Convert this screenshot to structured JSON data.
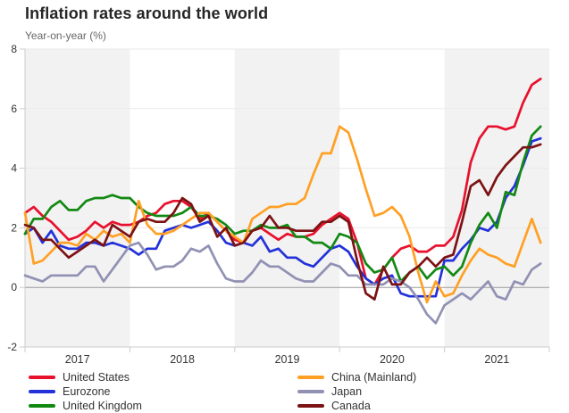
{
  "header": {
    "title": "Inflation rates around the world",
    "subtitle": "Year-on-year (%)"
  },
  "chart_data": {
    "type": "line",
    "title": "Inflation rates around the world",
    "ylabel": "Year-on-year (%)",
    "x_start": "2017-01",
    "x_end": "2021-12",
    "frequency": "monthly",
    "points_per_series": 60,
    "ylim": [
      -2,
      8
    ],
    "y_tick_labels": [
      "-2",
      "0",
      "2",
      "4",
      "6",
      "8"
    ],
    "y_ticks": [
      -2,
      0,
      2,
      4,
      6,
      8
    ],
    "x_tick_labels": [
      "2017",
      "2018",
      "2019",
      "2020",
      "2021"
    ],
    "grid": "horizontal",
    "legend_position": "bottom-left",
    "plot_band_color": "#f2f2f2",
    "shaded_years": [
      "2017",
      "2019",
      "2021"
    ],
    "zero_line_color": "#9a9a9a",
    "grid_color": "#e9e9e9",
    "axis_color": "#cccccc",
    "tick_label_color": "#333333",
    "series": [
      {
        "name": "United States",
        "color": "#e8112d",
        "values": [
          2.5,
          2.7,
          2.4,
          2.2,
          1.9,
          1.6,
          1.7,
          1.9,
          2.2,
          2.0,
          2.2,
          2.1,
          2.1,
          2.2,
          2.4,
          2.5,
          2.8,
          2.9,
          2.9,
          2.7,
          2.3,
          2.5,
          2.2,
          1.9,
          1.6,
          1.5,
          1.9,
          2.0,
          1.8,
          1.6,
          1.8,
          1.7,
          1.7,
          1.8,
          2.1,
          2.3,
          2.5,
          2.3,
          1.5,
          0.3,
          0.1,
          0.6,
          1.0,
          1.3,
          1.4,
          1.2,
          1.2,
          1.4,
          1.4,
          1.7,
          2.6,
          4.2,
          5.0,
          5.4,
          5.4,
          5.3,
          5.4,
          6.2,
          6.8,
          7.0
        ]
      },
      {
        "name": "Eurozone",
        "color": "#2331d9",
        "values": [
          1.8,
          2.0,
          1.5,
          1.9,
          1.4,
          1.3,
          1.3,
          1.5,
          1.5,
          1.4,
          1.5,
          1.4,
          1.3,
          1.1,
          1.3,
          1.3,
          1.9,
          2.0,
          2.1,
          2.0,
          2.1,
          2.2,
          1.9,
          1.5,
          1.4,
          1.5,
          1.4,
          1.7,
          1.2,
          1.3,
          1.0,
          1.0,
          0.8,
          0.7,
          1.0,
          1.3,
          1.4,
          1.2,
          0.7,
          0.3,
          0.1,
          0.3,
          0.4,
          -0.2,
          -0.3,
          -0.3,
          -0.3,
          -0.3,
          0.9,
          0.9,
          1.3,
          1.6,
          2.0,
          1.9,
          2.2,
          3.0,
          3.4,
          4.1,
          4.9,
          5.0
        ]
      },
      {
        "name": "United Kingdom",
        "color": "#128912",
        "values": [
          1.8,
          2.3,
          2.3,
          2.7,
          2.9,
          2.6,
          2.6,
          2.9,
          3.0,
          3.0,
          3.1,
          3.0,
          3.0,
          2.7,
          2.5,
          2.4,
          2.4,
          2.4,
          2.5,
          2.7,
          2.4,
          2.4,
          2.3,
          2.1,
          1.8,
          1.9,
          1.9,
          2.1,
          2.0,
          2.0,
          2.1,
          1.7,
          1.7,
          1.5,
          1.5,
          1.3,
          1.8,
          1.7,
          1.5,
          0.8,
          0.5,
          0.6,
          1.0,
          0.2,
          0.5,
          0.7,
          0.3,
          0.6,
          0.7,
          0.4,
          0.7,
          1.5,
          2.1,
          2.5,
          2.0,
          3.2,
          3.1,
          4.2,
          5.1,
          5.4
        ]
      },
      {
        "name": "China (Mainland)",
        "color": "#ffa024",
        "values": [
          2.5,
          0.8,
          0.9,
          1.2,
          1.5,
          1.5,
          1.4,
          1.8,
          1.6,
          1.9,
          1.7,
          1.8,
          1.5,
          2.9,
          2.1,
          1.8,
          1.8,
          1.9,
          2.1,
          2.3,
          2.5,
          2.5,
          2.2,
          1.9,
          1.7,
          1.5,
          2.3,
          2.5,
          2.7,
          2.7,
          2.8,
          2.8,
          3.0,
          3.8,
          4.5,
          4.5,
          5.4,
          5.2,
          4.3,
          3.3,
          2.4,
          2.5,
          2.7,
          2.4,
          1.7,
          0.5,
          -0.5,
          0.2,
          -0.3,
          -0.2,
          0.4,
          0.9,
          1.3,
          1.1,
          1.0,
          0.8,
          0.7,
          1.5,
          2.3,
          1.5
        ]
      },
      {
        "name": "Japan",
        "color": "#9191b4",
        "values": [
          0.4,
          0.3,
          0.2,
          0.4,
          0.4,
          0.4,
          0.4,
          0.7,
          0.7,
          0.2,
          0.6,
          1.0,
          1.4,
          1.5,
          1.1,
          0.6,
          0.7,
          0.7,
          0.9,
          1.3,
          1.2,
          1.4,
          0.8,
          0.3,
          0.2,
          0.2,
          0.5,
          0.9,
          0.7,
          0.7,
          0.5,
          0.3,
          0.2,
          0.2,
          0.5,
          0.8,
          0.7,
          0.4,
          0.4,
          0.1,
          0.1,
          0.1,
          0.3,
          0.2,
          0.0,
          -0.4,
          -0.9,
          -1.2,
          -0.6,
          -0.4,
          -0.2,
          -0.4,
          -0.1,
          0.2,
          -0.3,
          -0.4,
          0.2,
          0.1,
          0.6,
          0.8
        ]
      },
      {
        "name": "Canada",
        "color": "#7c1214",
        "values": [
          2.1,
          2.0,
          1.6,
          1.6,
          1.3,
          1.0,
          1.2,
          1.4,
          1.6,
          1.4,
          2.1,
          1.9,
          1.7,
          2.2,
          2.3,
          2.2,
          2.2,
          2.5,
          3.0,
          2.8,
          2.2,
          2.4,
          1.7,
          2.0,
          1.4,
          1.5,
          1.9,
          2.0,
          2.4,
          2.0,
          2.0,
          1.9,
          1.9,
          1.9,
          2.2,
          2.2,
          2.4,
          2.2,
          0.9,
          -0.2,
          -0.4,
          0.7,
          0.1,
          0.1,
          0.5,
          0.7,
          1.0,
          0.7,
          1.0,
          1.1,
          2.2,
          3.4,
          3.6,
          3.1,
          3.7,
          4.1,
          4.4,
          4.7,
          4.7,
          4.8
        ]
      }
    ]
  },
  "legend": {
    "column1": [
      "United States",
      "Eurozone",
      "United Kingdom"
    ],
    "column2": [
      "China (Mainland)",
      "Japan",
      "Canada"
    ]
  }
}
